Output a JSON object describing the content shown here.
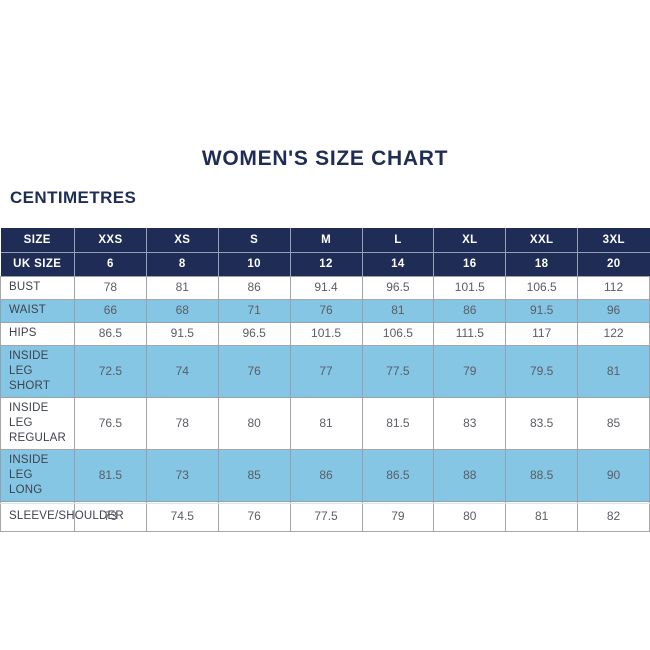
{
  "title": "WOMEN'S SIZE CHART",
  "unit_label": "CENTIMETRES",
  "colors": {
    "navy": "#1f2d56",
    "light_blue": "#85c6e4",
    "header_text": "#ffffff",
    "label_text": "#3e424c",
    "value_text": "#5a5d65",
    "grid_border": "#a6a6a6"
  },
  "chart_data": {
    "type": "table",
    "title": "WOMEN'S SIZE CHART",
    "unit": "CENTIMETRES",
    "header_row": [
      "SIZE",
      "XXS",
      "XS",
      "S",
      "M",
      "L",
      "XL",
      "XXL",
      "3XL"
    ],
    "uk_size_row": [
      "UK SIZE",
      "6",
      "8",
      "10",
      "12",
      "14",
      "16",
      "18",
      "20"
    ],
    "rows": [
      {
        "label": "BUST",
        "shaded": false,
        "values": [
          "78",
          "81",
          "86",
          "91.4",
          "96.5",
          "101.5",
          "106.5",
          "112"
        ]
      },
      {
        "label": "WAIST",
        "shaded": true,
        "values": [
          "66",
          "68",
          "71",
          "76",
          "81",
          "86",
          "91.5",
          "96"
        ]
      },
      {
        "label": "HIPS",
        "shaded": false,
        "values": [
          "86.5",
          "91.5",
          "96.5",
          "101.5",
          "106.5",
          "111.5",
          "117",
          "122"
        ]
      },
      {
        "label": "INSIDE LEG SHORT",
        "shaded": true,
        "values": [
          "72.5",
          "74",
          "76",
          "77",
          "77.5",
          "79",
          "79.5",
          "81"
        ]
      },
      {
        "label": "INSIDE LEG REGULAR",
        "shaded": false,
        "values": [
          "76.5",
          "78",
          "80",
          "81",
          "81.5",
          "83",
          "83.5",
          "85"
        ]
      },
      {
        "label": "INSIDE LEG LONG",
        "shaded": true,
        "values": [
          "81.5",
          "73",
          "85",
          "86",
          "86.5",
          "88",
          "88.5",
          "90"
        ]
      },
      {
        "label": "SLEEVE/SHOULDER",
        "shaded": false,
        "values": [
          "73",
          "74.5",
          "76",
          "77.5",
          "79",
          "80",
          "81",
          "82"
        ]
      }
    ]
  }
}
